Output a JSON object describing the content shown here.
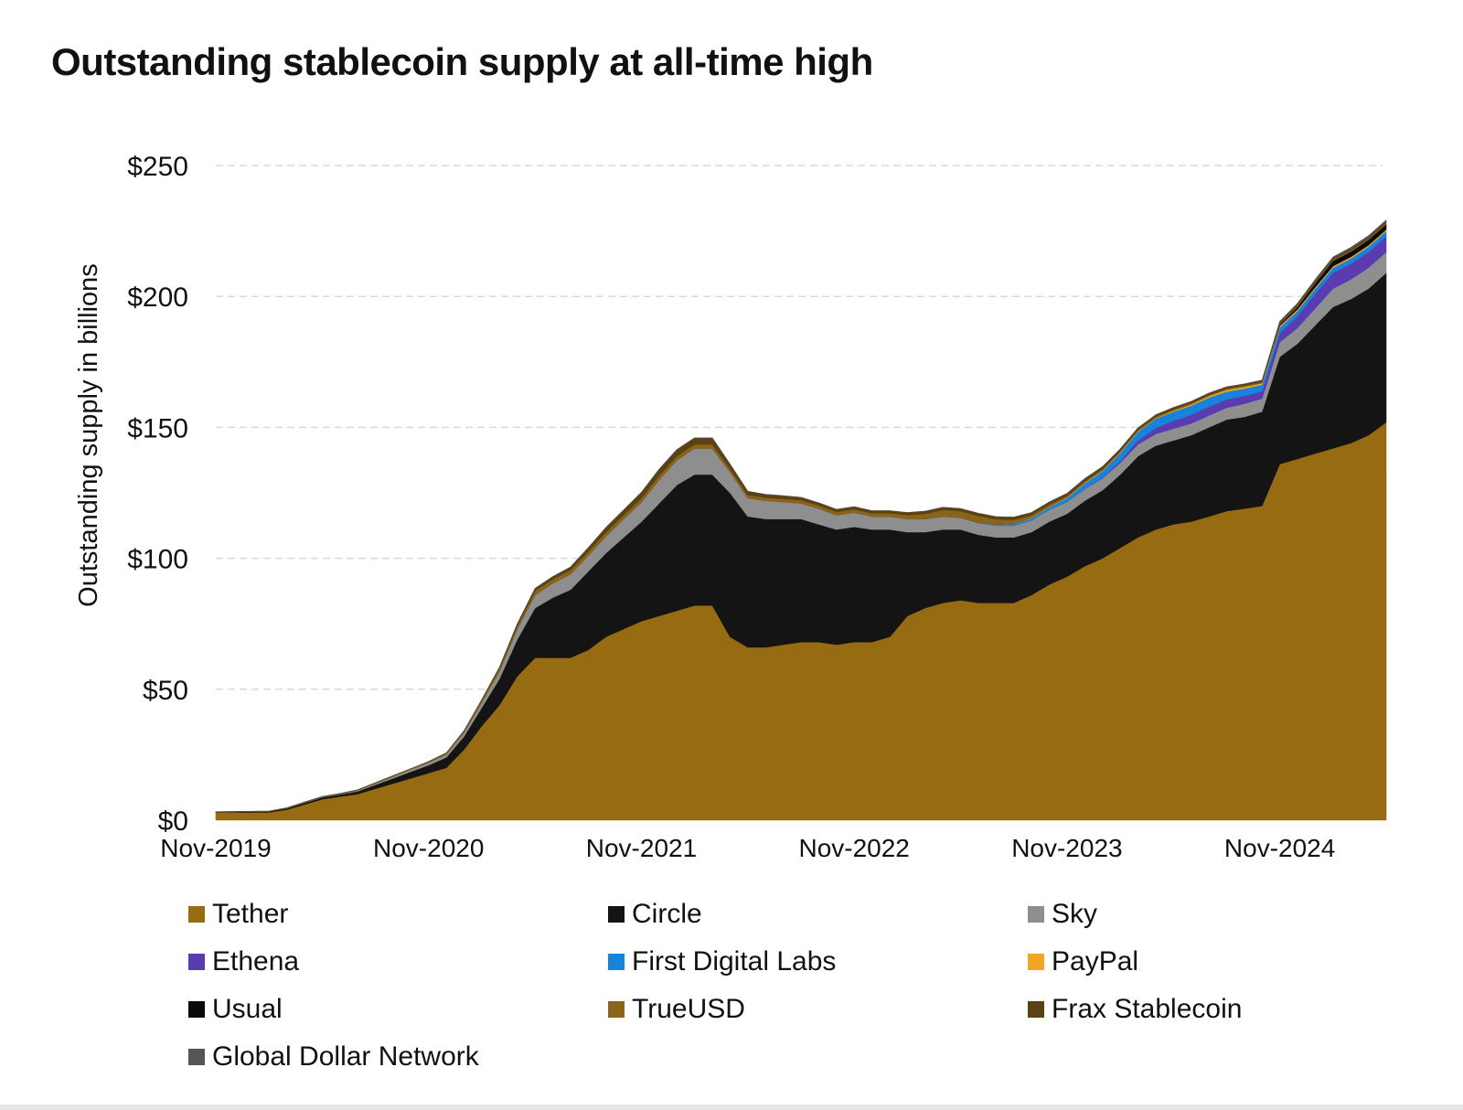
{
  "chart_data": {
    "type": "area",
    "stacked": true,
    "title": "Outstanding stablecoin supply at all-time high",
    "xlabel": "",
    "ylabel": "Outstanding supply in billions",
    "ylim": [
      0,
      250
    ],
    "yticks": [
      0,
      50,
      100,
      150,
      200,
      250
    ],
    "ytick_labels": [
      "$0",
      "$50",
      "$100",
      "$150",
      "$200",
      "$250"
    ],
    "xtick_labels": [
      "Nov-2019",
      "Nov-2020",
      "Nov-2021",
      "Nov-2022",
      "Nov-2023",
      "Nov-2024"
    ],
    "xtick_positions": [
      0,
      12,
      24,
      36,
      48,
      60
    ],
    "x_labels": [
      "Nov-2019",
      "Dec-2019",
      "Jan-2020",
      "Feb-2020",
      "Mar-2020",
      "Apr-2020",
      "May-2020",
      "Jun-2020",
      "Jul-2020",
      "Aug-2020",
      "Sep-2020",
      "Oct-2020",
      "Nov-2020",
      "Dec-2020",
      "Jan-2021",
      "Feb-2021",
      "Mar-2021",
      "Apr-2021",
      "May-2021",
      "Jun-2021",
      "Jul-2021",
      "Aug-2021",
      "Sep-2021",
      "Oct-2021",
      "Nov-2021",
      "Dec-2021",
      "Jan-2022",
      "Feb-2022",
      "Mar-2022",
      "Apr-2022",
      "May-2022",
      "Jun-2022",
      "Jul-2022",
      "Aug-2022",
      "Sep-2022",
      "Oct-2022",
      "Nov-2022",
      "Dec-2022",
      "Jan-2023",
      "Feb-2023",
      "Mar-2023",
      "Apr-2023",
      "May-2023",
      "Jun-2023",
      "Jul-2023",
      "Aug-2023",
      "Sep-2023",
      "Oct-2023",
      "Nov-2023",
      "Dec-2023",
      "Jan-2024",
      "Feb-2024",
      "Mar-2024",
      "Apr-2024",
      "May-2024",
      "Jun-2024",
      "Jul-2024",
      "Aug-2024",
      "Sep-2024",
      "Oct-2024",
      "Nov-2024",
      "Dec-2024",
      "Jan-2025",
      "Feb-2025",
      "Mar-2025",
      "Apr-2025",
      "May-2025"
    ],
    "grid": true,
    "legend_position": "bottom",
    "series": [
      {
        "name": "Tether",
        "color": "#966b12",
        "values": [
          3,
          3,
          3,
          3,
          4,
          6,
          8,
          9,
          10,
          12,
          14,
          16,
          18,
          20,
          27,
          36,
          44,
          55,
          62,
          62,
          62,
          65,
          70,
          73,
          76,
          78,
          80,
          82,
          82,
          70,
          66,
          66,
          67,
          68,
          68,
          67,
          68,
          68,
          70,
          78,
          81,
          83,
          84,
          83,
          83,
          83,
          86,
          90,
          93,
          97,
          100,
          104,
          108,
          111,
          113,
          114,
          116,
          118,
          119,
          120,
          136,
          138,
          140,
          142,
          144,
          147,
          152
        ]
      },
      {
        "name": "Circle",
        "color": "#141414",
        "values": [
          0.1,
          0.2,
          0.3,
          0.4,
          0.5,
          0.6,
          0.7,
          0.8,
          1,
          1.5,
          2,
          2.5,
          3,
          4,
          5,
          7,
          10,
          14,
          19,
          23,
          26,
          30,
          32,
          35,
          38,
          43,
          48,
          50,
          50,
          55,
          50,
          49,
          48,
          47,
          45,
          44,
          44,
          43,
          41,
          32,
          29,
          28,
          27,
          26,
          25,
          25,
          24,
          24,
          24,
          25,
          26,
          28,
          31,
          32,
          32,
          33,
          34,
          35,
          35,
          36,
          41,
          44,
          49,
          54,
          55,
          56,
          57
        ]
      },
      {
        "name": "Sky",
        "color": "#8e8e8e",
        "values": [
          0,
          0,
          0,
          0,
          0.1,
          0.1,
          0.1,
          0.2,
          0.3,
          0.5,
          0.7,
          0.9,
          1,
          1.2,
          1.5,
          2,
          3,
          4,
          5,
          5.5,
          6,
          6,
          6.5,
          7,
          7.5,
          9,
          9.5,
          10,
          10,
          8,
          7,
          7,
          6.5,
          6,
          6,
          5.5,
          5.5,
          5,
          5,
          5,
          5,
          5,
          4.5,
          4.5,
          4.5,
          4.5,
          4.5,
          4.5,
          4.5,
          4.5,
          4.5,
          4.5,
          4.5,
          4.5,
          4.5,
          4.5,
          4.5,
          4.5,
          5,
          5,
          5.5,
          6,
          6.5,
          7,
          7.5,
          8,
          8
        ]
      },
      {
        "name": "Ethena",
        "color": "#5a3bb0",
        "values": [
          0,
          0,
          0,
          0,
          0,
          0,
          0,
          0,
          0,
          0,
          0,
          0,
          0,
          0,
          0,
          0,
          0,
          0,
          0,
          0,
          0,
          0,
          0,
          0,
          0,
          0,
          0,
          0,
          0,
          0,
          0,
          0,
          0,
          0,
          0,
          0,
          0,
          0,
          0,
          0,
          0,
          0,
          0,
          0,
          0,
          0,
          0,
          0,
          0,
          0.1,
          0.3,
          0.7,
          1.5,
          2.3,
          3.0,
          3.3,
          3.4,
          3.2,
          3.0,
          2.8,
          3.5,
          4.5,
          5.5,
          6.0,
          6.0,
          6.0,
          6.0
        ]
      },
      {
        "name": "First Digital Labs",
        "color": "#1783db",
        "values": [
          0,
          0,
          0,
          0,
          0,
          0,
          0,
          0,
          0,
          0,
          0,
          0,
          0,
          0,
          0,
          0,
          0,
          0,
          0,
          0,
          0,
          0,
          0,
          0,
          0,
          0,
          0,
          0,
          0,
          0,
          0,
          0,
          0,
          0,
          0,
          0,
          0,
          0,
          0,
          0,
          0,
          0,
          0,
          0.2,
          0.4,
          0.6,
          0.8,
          1.0,
          1.5,
          2.0,
          2.5,
          3.0,
          3.3,
          3.5,
          3.5,
          3.5,
          3.5,
          3.0,
          2.8,
          2.5,
          2.2,
          2.0,
          2.0,
          2.0,
          2.0,
          2.0,
          2.0
        ]
      },
      {
        "name": "PayPal",
        "color": "#f2a524",
        "values": [
          0,
          0,
          0,
          0,
          0,
          0,
          0,
          0,
          0,
          0,
          0,
          0,
          0,
          0,
          0,
          0,
          0,
          0,
          0,
          0,
          0,
          0,
          0,
          0,
          0,
          0,
          0,
          0,
          0,
          0,
          0,
          0,
          0,
          0,
          0,
          0,
          0,
          0,
          0,
          0,
          0,
          0,
          0,
          0,
          0,
          0.1,
          0.2,
          0.2,
          0.3,
          0.3,
          0.3,
          0.3,
          0.3,
          0.3,
          0.4,
          0.5,
          0.6,
          0.7,
          0.7,
          0.6,
          0.6,
          0.6,
          0.6,
          0.6,
          0.6,
          0.6,
          0.6
        ]
      },
      {
        "name": "Usual",
        "color": "#0a0a0a",
        "values": [
          0,
          0,
          0,
          0,
          0,
          0,
          0,
          0,
          0,
          0,
          0,
          0,
          0,
          0,
          0,
          0,
          0,
          0,
          0,
          0,
          0,
          0,
          0,
          0,
          0,
          0,
          0,
          0,
          0,
          0,
          0,
          0,
          0,
          0,
          0,
          0,
          0,
          0,
          0,
          0,
          0,
          0,
          0,
          0,
          0,
          0,
          0,
          0,
          0,
          0,
          0,
          0,
          0,
          0,
          0,
          0,
          0,
          0,
          0,
          0,
          0.5,
          1.0,
          1.5,
          2.0,
          2.0,
          2.0,
          2.0
        ]
      },
      {
        "name": "TrueUSD",
        "color": "#8a6418",
        "values": [
          0.1,
          0.1,
          0.1,
          0.1,
          0.1,
          0.2,
          0.2,
          0.2,
          0.3,
          0.3,
          0.3,
          0.3,
          0.3,
          0.4,
          0.5,
          0.8,
          1,
          1.2,
          1.5,
          1.5,
          1.5,
          1.5,
          1.5,
          1.5,
          1.5,
          1.5,
          1.5,
          1.5,
          1.5,
          1.2,
          1.2,
          1.2,
          1.2,
          1.2,
          1.2,
          1.2,
          1.2,
          1.2,
          1.2,
          1.5,
          2.0,
          2.5,
          2.5,
          2.5,
          2.0,
          1.5,
          1.0,
          0.8,
          0.5,
          0.5,
          0.5,
          0.5,
          0.5,
          0.5,
          0.5,
          0.5,
          0.5,
          0.5,
          0.5,
          0.5,
          0.5,
          0.5,
          0.5,
          0.5,
          0.5,
          0.5,
          0.5
        ]
      },
      {
        "name": "Frax Stablecoin",
        "color": "#5c4112",
        "values": [
          0,
          0,
          0,
          0,
          0,
          0,
          0,
          0,
          0,
          0,
          0,
          0,
          0.1,
          0.1,
          0.2,
          0.3,
          0.5,
          0.8,
          1.0,
          1.0,
          1.2,
          1.5,
          1.8,
          2.0,
          2.2,
          2.5,
          2.5,
          2.5,
          2.5,
          1.8,
          1.4,
          1.2,
          1.2,
          1.1,
          1.0,
          1.0,
          1.0,
          1.0,
          1.0,
          1.0,
          1.0,
          1.0,
          1.0,
          1.0,
          1.0,
          1.0,
          1.0,
          1.0,
          1.0,
          1.0,
          0.9,
          0.8,
          0.7,
          0.7,
          0.7,
          0.6,
          0.6,
          0.6,
          0.6,
          0.6,
          0.6,
          0.6,
          0.6,
          0.6,
          0.6,
          0.6,
          0.6
        ]
      },
      {
        "name": "Global Dollar Network",
        "color": "#555555",
        "values": [
          0,
          0,
          0,
          0,
          0,
          0,
          0,
          0,
          0,
          0,
          0,
          0,
          0,
          0,
          0,
          0,
          0,
          0,
          0,
          0,
          0,
          0,
          0,
          0,
          0,
          0,
          0,
          0,
          0,
          0,
          0,
          0,
          0,
          0,
          0,
          0,
          0,
          0,
          0,
          0,
          0,
          0,
          0,
          0,
          0,
          0,
          0,
          0,
          0,
          0,
          0,
          0,
          0,
          0,
          0,
          0,
          0,
          0,
          0,
          0,
          0.1,
          0.2,
          0.3,
          0.4,
          0.5,
          0.5,
          0.5
        ]
      }
    ]
  }
}
